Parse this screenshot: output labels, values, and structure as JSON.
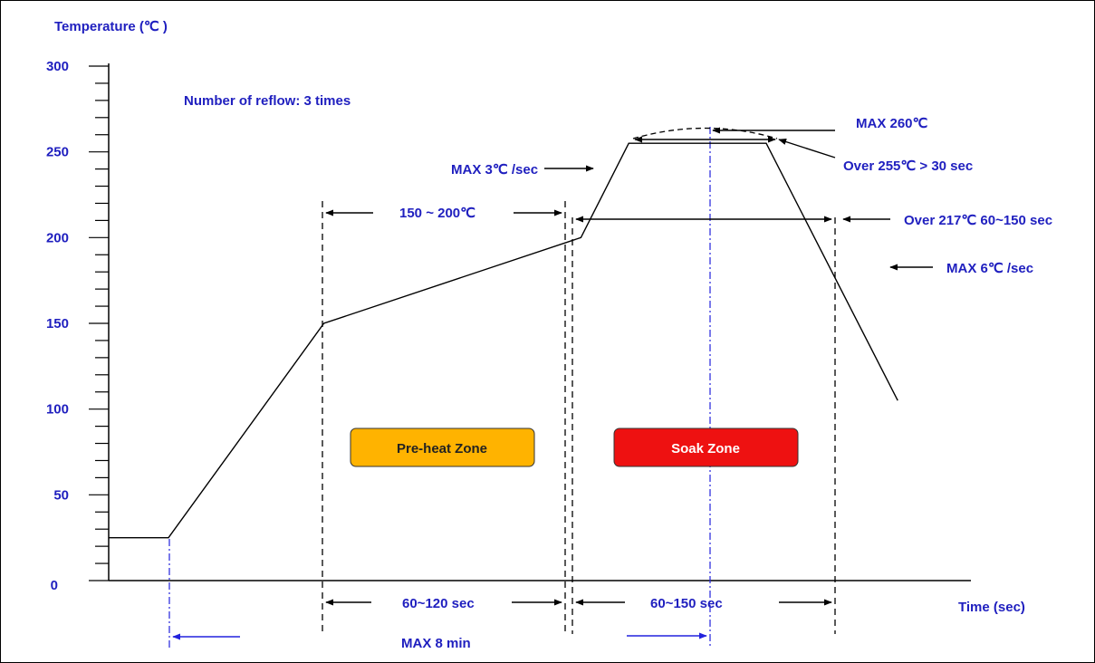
{
  "chart_data": {
    "type": "line",
    "ylabel": "Temperature (℃ )",
    "xlabel": "Time (sec)",
    "ylim": [
      0,
      300
    ],
    "y_ticks": [
      0,
      50,
      100,
      150,
      200,
      250,
      300
    ],
    "y_minor_step": 10,
    "series": [
      {
        "points": [
          [
            0,
            25
          ],
          [
            1,
            25
          ],
          [
            3.6,
            150
          ],
          [
            7.9,
            200
          ],
          [
            8.7,
            255
          ],
          [
            11.0,
            255
          ],
          [
            13.2,
            105
          ]
        ]
      }
    ],
    "peak": {
      "x": 9.85,
      "y": 260
    },
    "annotations": {
      "reflow": "Number of reflow: 3 times",
      "max260": "MAX 260℃",
      "over255": "Over 255℃ > 30 sec",
      "max3": "MAX 3℃ /sec",
      "range150_200": "150 ~ 200℃",
      "over217": "Over 217℃ 60~150 sec",
      "max6": "MAX 6℃ /sec",
      "sec60_120": "60~120 sec",
      "sec60_150": "60~150 sec",
      "max8min": "MAX 8 min"
    },
    "zones": [
      {
        "label": "Pre-heat Zone",
        "color": "#ffb300",
        "text_color": "#222222"
      },
      {
        "label": "Soak Zone",
        "color": "#ee1111",
        "text_color": "#ffffff"
      }
    ],
    "colors": {
      "line": "#000000",
      "text": "#1f1fbf",
      "guide": "#2222dd"
    }
  }
}
